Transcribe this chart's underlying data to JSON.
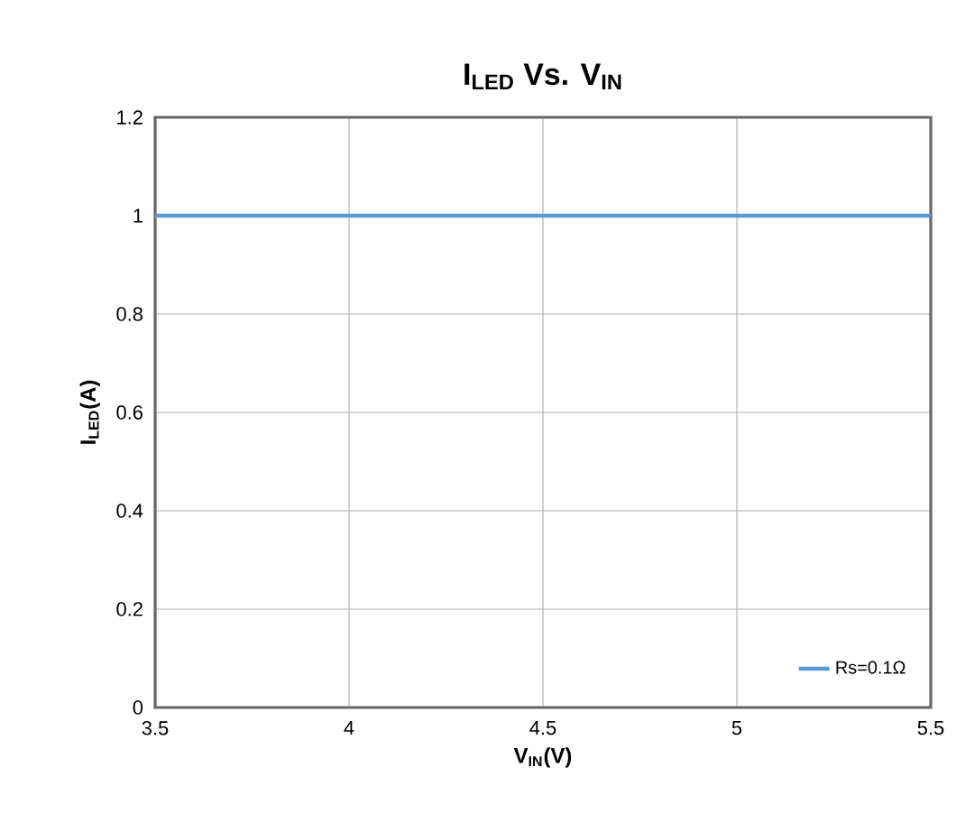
{
  "chart_data": {
    "type": "line",
    "title": "I$_{LED}$ Vs. V$_{IN}$",
    "xlabel": "V$_{IN}$(V)",
    "ylabel": "I$_{LED}$(A)",
    "x": [
      3.5,
      5.5
    ],
    "series": [
      {
        "name": "Rs=0.1Ω",
        "color": "#5b9bd5",
        "values": [
          1,
          1
        ]
      }
    ],
    "xlim": [
      3.5,
      5.5
    ],
    "xticks": [
      3.5,
      4,
      4.5,
      5,
      5.5
    ],
    "ylim": [
      0,
      1.2
    ],
    "yticks": [
      0,
      0.2,
      0.4,
      0.6,
      0.8,
      1,
      1.2
    ],
    "grid": true,
    "legend": "bottom right",
    "marker": "none",
    "line_style": "solid"
  }
}
